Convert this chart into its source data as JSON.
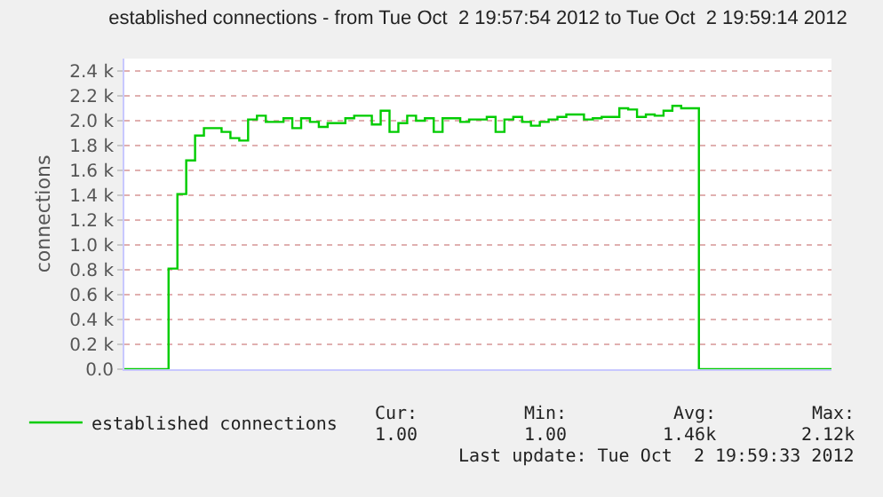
{
  "chart_data": {
    "type": "step",
    "title": "established connections - from Tue Oct  2 19:57:54 2012 to Tue Oct  2 19:59:14 2012",
    "ylabel": "connections",
    "categories": [
      null,
      null,
      null,
      null,
      null,
      null,
      null,
      null,
      null,
      null,
      null,
      null,
      null,
      null,
      null,
      null,
      null,
      null,
      null,
      null,
      null,
      null,
      null,
      null,
      null,
      null,
      null,
      null,
      null,
      null,
      null,
      null,
      null,
      null,
      null,
      null,
      null,
      null,
      null,
      null,
      null,
      null,
      null,
      null,
      null,
      null,
      null,
      null,
      null,
      null,
      null,
      null,
      null,
      null,
      null,
      null,
      null,
      null,
      null,
      null,
      null,
      null,
      null,
      null,
      null,
      null,
      null,
      null,
      null,
      null,
      null,
      null,
      null,
      null,
      null,
      null,
      null,
      null,
      null,
      null,
      null
    ],
    "series": [
      {
        "name": "established connections",
        "color": "#00cc00",
        "values": [
          0,
          0,
          0,
          0,
          0,
          810,
          1410,
          1680,
          1880,
          1940,
          1940,
          1910,
          1860,
          1840,
          2010,
          2040,
          1990,
          1990,
          2020,
          1940,
          2020,
          1990,
          1950,
          1980,
          1980,
          2020,
          2040,
          2040,
          1970,
          2080,
          1910,
          1980,
          2040,
          2000,
          2020,
          1910,
          2020,
          2020,
          1990,
          2010,
          2010,
          2030,
          1910,
          2010,
          2030,
          1990,
          1960,
          1990,
          2010,
          2030,
          2050,
          2050,
          2010,
          2020,
          2030,
          2030,
          2100,
          2090,
          2030,
          2050,
          2040,
          2080,
          2120,
          2100,
          2100,
          0,
          0,
          0,
          0,
          0,
          0,
          0,
          0,
          0,
          0,
          0,
          0,
          0,
          0,
          0,
          0
        ]
      }
    ],
    "ylim": [
      0,
      2500
    ],
    "yticks": [
      {
        "value": 0,
        "label": "0.0"
      },
      {
        "value": 200,
        "label": "0.2 k"
      },
      {
        "value": 400,
        "label": "0.4 k"
      },
      {
        "value": 600,
        "label": "0.6 k"
      },
      {
        "value": 800,
        "label": "0.8 k"
      },
      {
        "value": 1000,
        "label": "1.0 k"
      },
      {
        "value": 1200,
        "label": "1.2 k"
      },
      {
        "value": 1400,
        "label": "1.4 k"
      },
      {
        "value": 1600,
        "label": "1.6 k"
      },
      {
        "value": 1800,
        "label": "1.8 k"
      },
      {
        "value": 2000,
        "label": "2.0 k"
      },
      {
        "value": 2200,
        "label": "2.2 k"
      },
      {
        "value": 2400,
        "label": "2.4 k"
      }
    ],
    "tick_labels": "y",
    "grid": "y",
    "legend": "bottom left",
    "marker": "none",
    "line_style": "solid",
    "annotations": [
      "Cur:",
      "Min:",
      "Avg:",
      "Max:",
      "1.00",
      "1.00",
      "1.46k",
      "2.12k",
      "Last update: Tue Oct  2 19:59:33 2012"
    ]
  }
}
